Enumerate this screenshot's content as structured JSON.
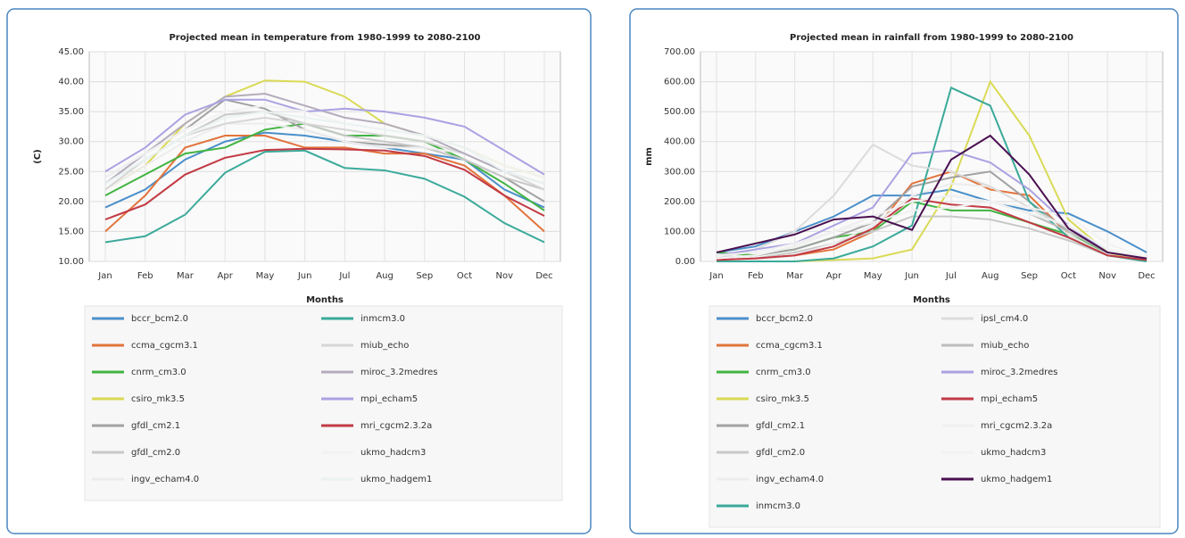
{
  "chart_data": [
    {
      "type": "line",
      "title": "Projected mean in temperature from 1980-1999 to 2080-2100",
      "x_label": "Months",
      "y_label": "(C)",
      "categories": [
        "Jan",
        "Feb",
        "Mar",
        "Apr",
        "May",
        "Jun",
        "Jul",
        "Aug",
        "Sep",
        "Oct",
        "Nov",
        "Dec"
      ],
      "ylim": [
        10,
        45
      ],
      "yticks": [
        {
          "value": 10,
          "label": "10.00"
        },
        {
          "value": 15,
          "label": "15.00"
        },
        {
          "value": 20,
          "label": "20.00"
        },
        {
          "value": 25,
          "label": "25.00"
        },
        {
          "value": 30,
          "label": "30.00"
        },
        {
          "value": 35,
          "label": "35.00"
        },
        {
          "value": 40,
          "label": "40.00"
        },
        {
          "value": 45,
          "label": "45.00"
        }
      ],
      "grid": true,
      "legend": "bottom",
      "series": [
        {
          "name": "bccr_bcm2.0",
          "color": "#4a8fc9",
          "values": [
            19,
            22,
            27,
            30,
            31.5,
            31,
            30,
            29,
            28,
            27,
            22,
            19
          ]
        },
        {
          "name": "ccma_cgcm3.1",
          "color": "#e2733c",
          "values": [
            15,
            21,
            29,
            31,
            31,
            29,
            29,
            28,
            28,
            26,
            21,
            15
          ]
        },
        {
          "name": "cnrm_cm3.0",
          "color": "#42b442",
          "values": [
            21,
            24.5,
            28,
            29,
            32,
            33,
            31,
            31,
            30,
            27,
            23,
            18.5
          ]
        },
        {
          "name": "csiro_mk3.5",
          "color": "#dada55",
          "values": [
            22,
            26,
            33,
            37.5,
            40.2,
            40,
            37.5,
            33,
            31,
            29,
            26,
            24
          ]
        },
        {
          "name": "gfdl_cm2.1",
          "color": "#a2a2a2",
          "values": [
            24,
            28,
            32,
            37,
            35.5,
            32,
            30,
            29.5,
            29,
            27,
            24,
            20
          ]
        },
        {
          "name": "gfdl_cm2.0",
          "color": "#c8c8c8",
          "values": [
            23,
            27,
            31,
            34.5,
            35,
            33,
            31,
            30,
            29,
            27,
            24,
            22
          ]
        },
        {
          "name": "ingv_echam4.0",
          "color": "#ececec",
          "values": [
            22,
            26,
            30,
            33,
            33,
            32,
            30,
            29,
            29,
            28,
            25,
            23
          ]
        },
        {
          "name": "inmcm3.0",
          "color": "#3aaa9a",
          "values": [
            13.2,
            14.2,
            17.8,
            24.8,
            28.3,
            28.5,
            25.6,
            25.2,
            23.8,
            20.8,
            16.4,
            13.2
          ]
        },
        {
          "name": "miub_echo",
          "color": "#d6d6d6",
          "values": [
            22,
            27,
            31,
            33,
            34,
            33,
            32,
            31,
            30,
            28,
            25,
            22
          ]
        },
        {
          "name": "miroc_3.2medres",
          "color": "#b4acbc",
          "values": [
            23,
            28,
            33,
            37.5,
            38,
            36,
            34,
            33,
            31,
            28,
            25,
            23
          ]
        },
        {
          "name": "mpi_echam5",
          "color": "#aaa2e2",
          "values": [
            25,
            29,
            34.5,
            37,
            37,
            35,
            35.5,
            35,
            34,
            32.5,
            28.5,
            24.5
          ]
        },
        {
          "name": "mri_cgcm2.3.2a",
          "color": "#c23a44",
          "values": [
            17,
            19.5,
            24.5,
            27.3,
            28.6,
            28.8,
            28.7,
            28.5,
            27.6,
            25.3,
            21,
            17.6
          ]
        },
        {
          "name": "ukmo_hadcm3",
          "color": "#f2f2f2",
          "values": [
            24,
            28,
            32,
            35,
            36,
            35,
            33,
            32,
            31,
            29,
            26,
            24
          ]
        },
        {
          "name": "ukmo_hadgem1",
          "color": "#eaf2f2",
          "values": [
            23,
            27,
            31,
            34,
            35,
            34,
            33,
            32,
            31,
            29,
            25,
            23
          ]
        }
      ]
    },
    {
      "type": "line",
      "title": "Projected mean in rainfall from 1980-1999 to 2080-2100",
      "x_label": "Months",
      "y_label": "mm",
      "categories": [
        "Jan",
        "Feb",
        "Mar",
        "Apr",
        "May",
        "Jun",
        "Jul",
        "Aug",
        "Sep",
        "Oct",
        "Nov",
        "Dec"
      ],
      "ylim": [
        0,
        700
      ],
      "yticks": [
        {
          "value": 0,
          "label": "0.00"
        },
        {
          "value": 100,
          "label": "100.00"
        },
        {
          "value": 200,
          "label": "200.00"
        },
        {
          "value": 300,
          "label": "300.00"
        },
        {
          "value": 400,
          "label": "400.00"
        },
        {
          "value": 500,
          "label": "500.00"
        },
        {
          "value": 600,
          "label": "600.00"
        },
        {
          "value": 700,
          "label": "700.00"
        }
      ],
      "grid": true,
      "legend": "bottom",
      "series": [
        {
          "name": "bccr_bcm2.0",
          "color": "#4a8fc9",
          "values": [
            30,
            50,
            100,
            150,
            220,
            220,
            240,
            200,
            170,
            160,
            100,
            30
          ]
        },
        {
          "name": "ccma_cgcm3.1",
          "color": "#e2733c",
          "values": [
            5,
            10,
            20,
            40,
            100,
            260,
            300,
            240,
            220,
            90,
            20,
            5
          ]
        },
        {
          "name": "cnrm_cm3.0",
          "color": "#42b442",
          "values": [
            30,
            20,
            40,
            80,
            100,
            200,
            170,
            170,
            130,
            90,
            30,
            5
          ]
        },
        {
          "name": "csiro_mk3.5",
          "color": "#dada55",
          "values": [
            0,
            0,
            0,
            5,
            10,
            40,
            250,
            600,
            420,
            140,
            30,
            0
          ]
        },
        {
          "name": "gfdl_cm2.1",
          "color": "#a2a2a2",
          "values": [
            10,
            20,
            40,
            80,
            130,
            250,
            280,
            300,
            200,
            100,
            30,
            10
          ]
        },
        {
          "name": "gfdl_cm2.0",
          "color": "#c8c8c8",
          "values": [
            5,
            10,
            30,
            60,
            100,
            150,
            150,
            140,
            110,
            70,
            20,
            5
          ]
        },
        {
          "name": "ingv_echam4.0",
          "color": "#ececec",
          "values": [
            0,
            5,
            20,
            60,
            120,
            220,
            260,
            250,
            180,
            90,
            20,
            0
          ]
        },
        {
          "name": "inmcm3.0",
          "color": "#3aaa9a",
          "values": [
            0,
            0,
            0,
            10,
            50,
            120,
            580,
            520,
            200,
            80,
            20,
            0
          ]
        },
        {
          "name": "ipsl_cm4.0",
          "color": "#dcdcdc",
          "values": [
            10,
            40,
            100,
            220,
            390,
            320,
            300,
            250,
            180,
            110,
            40,
            10
          ]
        },
        {
          "name": "miub_echo",
          "color": "#bdbdbd",
          "values": [
            10,
            20,
            50,
            100,
            150,
            200,
            220,
            200,
            160,
            100,
            30,
            10
          ]
        },
        {
          "name": "miroc_3.2medres",
          "color": "#aaa2e2",
          "values": [
            20,
            40,
            60,
            120,
            180,
            360,
            370,
            330,
            240,
            120,
            30,
            10
          ]
        },
        {
          "name": "mpi_echam5",
          "color": "#c23a44",
          "values": [
            5,
            10,
            20,
            50,
            110,
            210,
            190,
            180,
            130,
            80,
            20,
            5
          ]
        },
        {
          "name": "mri_cgcm2.3.2a",
          "color": "#f0f0f0",
          "values": [
            20,
            30,
            60,
            100,
            130,
            170,
            180,
            200,
            160,
            120,
            40,
            10
          ]
        },
        {
          "name": "ukmo_hadcm3",
          "color": "#f2f2f2",
          "values": [
            10,
            20,
            50,
            100,
            150,
            200,
            220,
            200,
            180,
            150,
            60,
            10
          ]
        },
        {
          "name": "ukmo_hadgem1",
          "color": "#4a1050",
          "values": [
            30,
            60,
            90,
            140,
            150,
            105,
            340,
            420,
            290,
            110,
            30,
            10
          ]
        }
      ]
    }
  ]
}
